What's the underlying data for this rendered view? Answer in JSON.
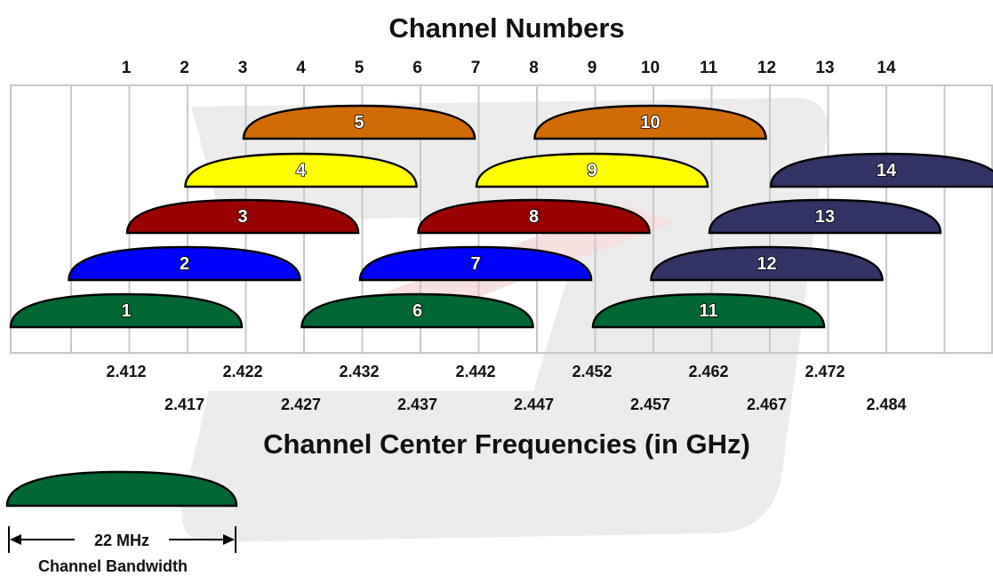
{
  "top_title": "Channel Numbers",
  "bottom_title": "Channel Center Frequencies (in GHz)",
  "channel_numbers": [
    "1",
    "2",
    "3",
    "4",
    "5",
    "6",
    "7",
    "8",
    "9",
    "10",
    "11",
    "12",
    "13",
    "14"
  ],
  "frequencies": [
    "2.412",
    "2.417",
    "2.422",
    "2.427",
    "2.432",
    "2.437",
    "2.442",
    "2.447",
    "2.452",
    "2.457",
    "2.462",
    "2.467",
    "2.472",
    "2.484"
  ],
  "colors": {
    "orange": "#d06b06",
    "yellow": "#ffff00",
    "red": "#990000",
    "blue": "#0000ff",
    "green": "#006633",
    "navy": "#333366",
    "grid": "#c8c8c8",
    "watermark": "#d9d9d9"
  },
  "arcs": [
    {
      "label": "5",
      "channel": 5,
      "color": "orange"
    },
    {
      "label": "10",
      "channel": 10,
      "color": "orange"
    },
    {
      "label": "4",
      "channel": 4,
      "color": "yellow"
    },
    {
      "label": "9",
      "channel": 9,
      "color": "yellow"
    },
    {
      "label": "14",
      "channel": 14,
      "color": "navy"
    },
    {
      "label": "3",
      "channel": 3,
      "color": "red"
    },
    {
      "label": "8",
      "channel": 8,
      "color": "red"
    },
    {
      "label": "13",
      "channel": 13,
      "color": "navy"
    },
    {
      "label": "2",
      "channel": 2,
      "color": "blue"
    },
    {
      "label": "7",
      "channel": 7,
      "color": "blue"
    },
    {
      "label": "12",
      "channel": 12,
      "color": "navy"
    },
    {
      "label": "1",
      "channel": 1,
      "color": "green"
    },
    {
      "label": "6",
      "channel": 6,
      "color": "green"
    },
    {
      "label": "11",
      "channel": 11,
      "color": "green"
    }
  ],
  "legend": {
    "bandwidth": "22 MHz",
    "caption": "Channel Bandwidth",
    "color": "green"
  }
}
